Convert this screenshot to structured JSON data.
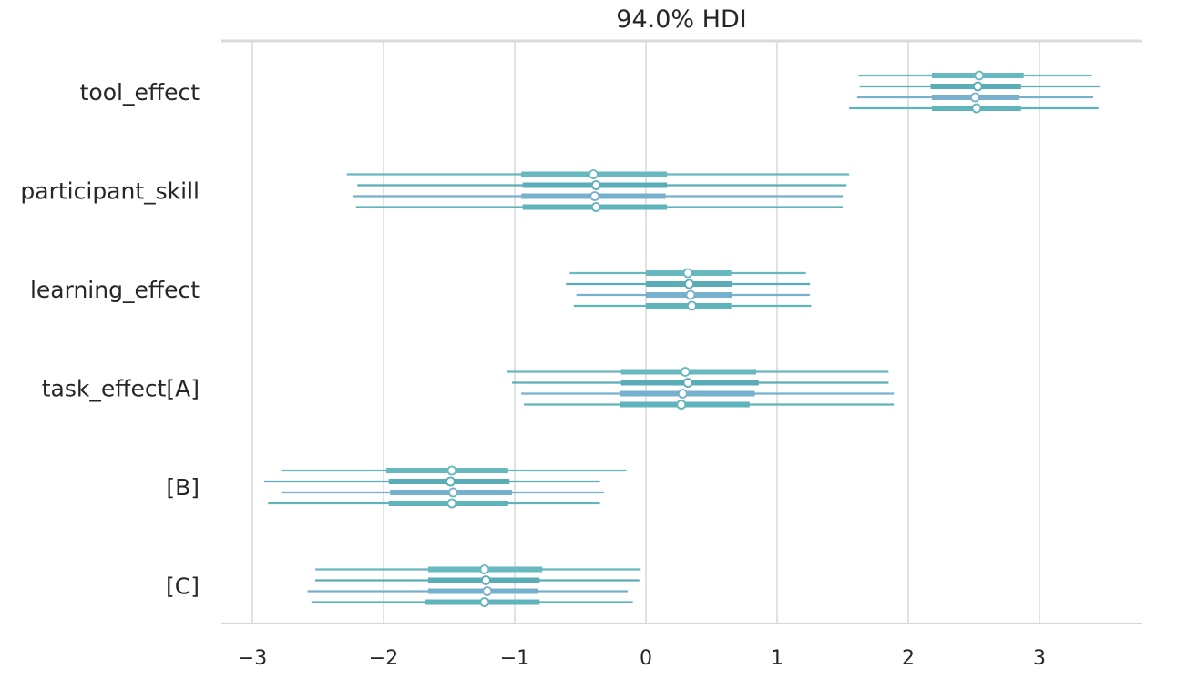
{
  "chart_data": {
    "type": "forest",
    "title": "94.0% HDI",
    "xlabel": "",
    "ylabel": "",
    "xlim": [
      -3.2,
      3.75
    ],
    "x_ticks": [
      -3,
      -2,
      -1,
      0,
      1,
      2,
      3
    ],
    "x_tick_labels": [
      "−3",
      "−2",
      "−1",
      "0",
      "1",
      "2",
      "3"
    ],
    "grid": "vertical",
    "colors": {
      "chain": [
        "#67b8bf",
        "#5aadb6",
        "#76b0cc",
        "#5fb3bb"
      ],
      "point_fill": "#ffffff",
      "grid": "#d9d9de",
      "axis": "#c8c8cc",
      "text": "#262626"
    },
    "variables": [
      {
        "label": "tool_effect",
        "chains": [
          {
            "mean": 2.54,
            "hdi_50": [
              2.18,
              2.88
            ],
            "hdi_94": [
              1.62,
              3.4
            ]
          },
          {
            "mean": 2.53,
            "hdi_50": [
              2.17,
              2.86
            ],
            "hdi_94": [
              1.63,
              3.46
            ]
          },
          {
            "mean": 2.51,
            "hdi_50": [
              2.18,
              2.84
            ],
            "hdi_94": [
              1.61,
              3.41
            ]
          },
          {
            "mean": 2.52,
            "hdi_50": [
              2.18,
              2.86
            ],
            "hdi_94": [
              1.55,
              3.45
            ]
          }
        ]
      },
      {
        "label": "participant_skill",
        "chains": [
          {
            "mean": -0.4,
            "hdi_50": [
              -0.95,
              0.16
            ],
            "hdi_94": [
              -2.28,
              1.55
            ]
          },
          {
            "mean": -0.38,
            "hdi_50": [
              -0.94,
              0.16
            ],
            "hdi_94": [
              -2.2,
              1.53
            ]
          },
          {
            "mean": -0.39,
            "hdi_50": [
              -0.95,
              0.15
            ],
            "hdi_94": [
              -2.23,
              1.5
            ]
          },
          {
            "mean": -0.38,
            "hdi_50": [
              -0.94,
              0.16
            ],
            "hdi_94": [
              -2.21,
              1.5
            ]
          }
        ]
      },
      {
        "label": "learning_effect",
        "chains": [
          {
            "mean": 0.32,
            "hdi_50": [
              0.0,
              0.65
            ],
            "hdi_94": [
              -0.58,
              1.22
            ]
          },
          {
            "mean": 0.33,
            "hdi_50": [
              0.0,
              0.66
            ],
            "hdi_94": [
              -0.61,
              1.25
            ]
          },
          {
            "mean": 0.34,
            "hdi_50": [
              0.0,
              0.66
            ],
            "hdi_94": [
              -0.53,
              1.25
            ]
          },
          {
            "mean": 0.35,
            "hdi_50": [
              0.0,
              0.65
            ],
            "hdi_94": [
              -0.55,
              1.26
            ]
          }
        ]
      },
      {
        "label": "task_effect[A]",
        "chains": [
          {
            "mean": 0.3,
            "hdi_50": [
              -0.19,
              0.84
            ],
            "hdi_94": [
              -1.06,
              1.85
            ]
          },
          {
            "mean": 0.32,
            "hdi_50": [
              -0.19,
              0.86
            ],
            "hdi_94": [
              -1.02,
              1.85
            ]
          },
          {
            "mean": 0.28,
            "hdi_50": [
              -0.2,
              0.83
            ],
            "hdi_94": [
              -0.95,
              1.89
            ]
          },
          {
            "mean": 0.27,
            "hdi_50": [
              -0.2,
              0.79
            ],
            "hdi_94": [
              -0.93,
              1.89
            ]
          }
        ]
      },
      {
        "label": "[B]",
        "chains": [
          {
            "mean": -1.48,
            "hdi_50": [
              -1.98,
              -1.05
            ],
            "hdi_94": [
              -2.78,
              -0.15
            ]
          },
          {
            "mean": -1.49,
            "hdi_50": [
              -1.96,
              -1.04
            ],
            "hdi_94": [
              -2.91,
              -0.35
            ]
          },
          {
            "mean": -1.47,
            "hdi_50": [
              -1.95,
              -1.02
            ],
            "hdi_94": [
              -2.78,
              -0.32
            ]
          },
          {
            "mean": -1.48,
            "hdi_50": [
              -1.96,
              -1.05
            ],
            "hdi_94": [
              -2.88,
              -0.35
            ]
          }
        ]
      },
      {
        "label": "[C]",
        "chains": [
          {
            "mean": -1.23,
            "hdi_50": [
              -1.66,
              -0.79
            ],
            "hdi_94": [
              -2.52,
              -0.04
            ]
          },
          {
            "mean": -1.22,
            "hdi_50": [
              -1.66,
              -0.81
            ],
            "hdi_94": [
              -2.52,
              -0.05
            ]
          },
          {
            "mean": -1.21,
            "hdi_50": [
              -1.66,
              -0.82
            ],
            "hdi_94": [
              -2.58,
              -0.14
            ]
          },
          {
            "mean": -1.23,
            "hdi_50": [
              -1.68,
              -0.81
            ],
            "hdi_94": [
              -2.55,
              -0.1
            ]
          }
        ]
      }
    ]
  }
}
